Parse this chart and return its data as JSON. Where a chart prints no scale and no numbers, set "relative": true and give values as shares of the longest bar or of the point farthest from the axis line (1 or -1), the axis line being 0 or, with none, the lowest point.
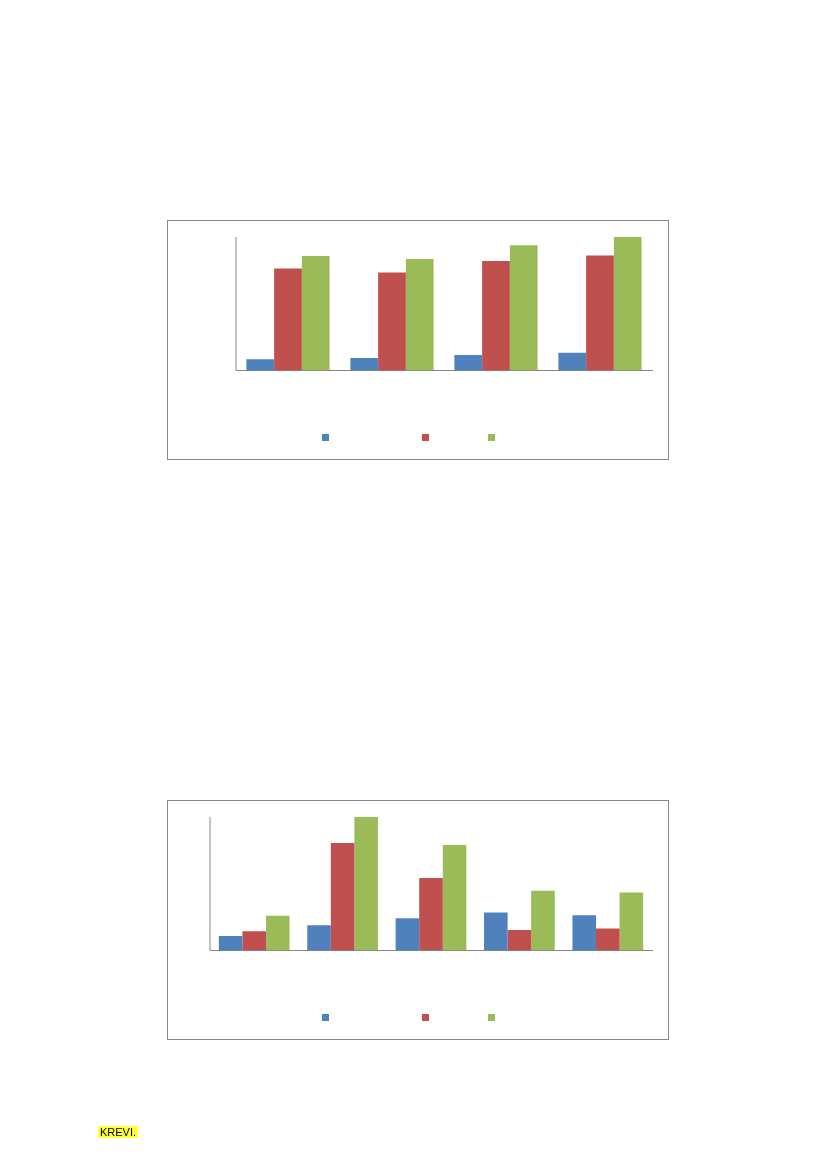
{
  "chart_data": [
    {
      "type": "bar",
      "relative": true,
      "grid": false,
      "categories": [
        null,
        null,
        null,
        null
      ],
      "series": [
        {
          "color": "#4f81bd",
          "values": [
            0.085,
            0.095,
            0.117,
            0.133
          ]
        },
        {
          "color": "#c0504d",
          "values": [
            0.764,
            0.735,
            0.82,
            0.862
          ]
        },
        {
          "color": "#9bbb59",
          "values": [
            0.857,
            0.836,
            0.939,
            1
          ]
        }
      ]
    },
    {
      "type": "bar",
      "relative": true,
      "grid": false,
      "categories": [
        null,
        null,
        null,
        null,
        null
      ],
      "series": [
        {
          "color": "#4f81bd",
          "values": [
            0.11,
            0.19,
            0.243,
            0.285,
            0.265
          ]
        },
        {
          "color": "#c0504d",
          "values": [
            0.145,
            0.805,
            0.543,
            0.155,
            0.165
          ]
        },
        {
          "color": "#9bbb59",
          "values": [
            0.26,
            1,
            0.79,
            0.448,
            0.435
          ]
        }
      ],
      "annotations": [
        "KREVI."
      ]
    }
  ]
}
